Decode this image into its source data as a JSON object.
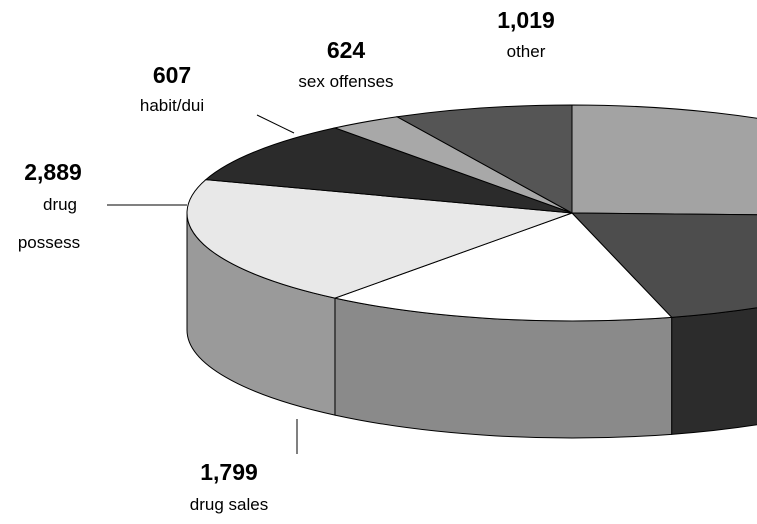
{
  "chart_data": {
    "type": "pie",
    "style": "3d",
    "slices": [
      {
        "label": "",
        "value": null,
        "color": "#a3a3a3",
        "side_color": "#6e6e6e"
      },
      {
        "label": "",
        "value": null,
        "color": "#4d4d4d",
        "side_color": "#2c2c2c"
      },
      {
        "label": "drug sales",
        "display_value": "1,799",
        "value": 1799,
        "color": "#ffffff",
        "side_color": "#8a8a8a"
      },
      {
        "label": "drug possess",
        "display_value": "2,889",
        "value": 2889,
        "color": "#e8e8e8",
        "side_color": "#9a9a9a"
      },
      {
        "label": "habit/dui",
        "display_value": "607",
        "value": 607,
        "color": "#2b2b2b",
        "side_color": "#1a1a1a"
      },
      {
        "label": "sex offenses",
        "display_value": "624",
        "value": 624,
        "color": "#a8a8a8",
        "side_color": "#6a6a6a"
      },
      {
        "label": "other",
        "display_value": "1,019",
        "value": 1019,
        "color": "#555555",
        "side_color": "#333333"
      }
    ]
  }
}
